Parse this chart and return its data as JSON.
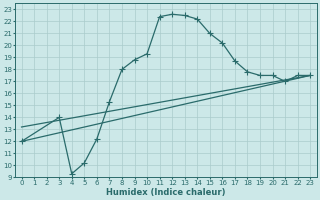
{
  "xlabel": "Humidex (Indice chaleur)",
  "background_color": "#cce8e8",
  "grid_color": "#aacccc",
  "line_color": "#2a6b6b",
  "xlim": [
    -0.5,
    23.5
  ],
  "ylim": [
    9,
    23.5
  ],
  "xticks": [
    0,
    1,
    2,
    3,
    4,
    5,
    6,
    7,
    8,
    9,
    10,
    11,
    12,
    13,
    14,
    15,
    16,
    17,
    18,
    19,
    20,
    21,
    22,
    23
  ],
  "yticks": [
    9,
    10,
    11,
    12,
    13,
    14,
    15,
    16,
    17,
    18,
    19,
    20,
    21,
    22,
    23
  ],
  "curve1_x": [
    0,
    3,
    4,
    5,
    6,
    7,
    8,
    9,
    10,
    11,
    12,
    13,
    14,
    15,
    16,
    17,
    18,
    19,
    20,
    21,
    22,
    23
  ],
  "curve1_y": [
    12,
    14,
    9.3,
    10.2,
    12.2,
    15.3,
    18.0,
    18.8,
    19.3,
    22.4,
    22.6,
    22.5,
    22.2,
    21.0,
    20.2,
    18.7,
    17.8,
    17.5,
    17.5,
    17.0,
    17.5,
    17.5
  ],
  "line2_x": [
    0,
    23
  ],
  "line2_y": [
    12.0,
    17.5
  ],
  "line3_x": [
    0,
    23
  ],
  "line3_y": [
    13.2,
    17.5
  ],
  "marker": "+",
  "markersize": 4,
  "linewidth": 0.9,
  "tick_fontsize": 5.0,
  "xlabel_fontsize": 6.0
}
